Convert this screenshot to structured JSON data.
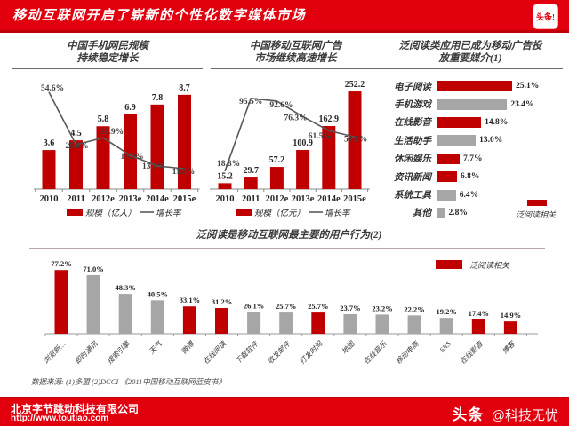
{
  "header": {
    "title": "移动互联网开启了崭新的个性化数字媒体市场",
    "logo": "头条!"
  },
  "colors": {
    "accent_red": "#e3000e",
    "bar_red": "#c00000",
    "bar_gray": "#a6a6a6",
    "line_gray": "#595959"
  },
  "chart_data": [
    {
      "id": "mobile-netizens",
      "type": "bar",
      "title_lines": [
        "中国手机网民规模",
        "持续稳定增长"
      ],
      "categories": [
        "2010",
        "2011",
        "2012e",
        "2013e",
        "2014e",
        "2015e"
      ],
      "series": [
        {
          "name": "规模（亿人）",
          "type": "bar",
          "values": [
            3.6,
            4.5,
            5.8,
            6.9,
            7.8,
            8.7
          ],
          "labels": [
            "3.6",
            "4.5",
            "5.8",
            "6.9",
            "7.8",
            "8.7"
          ]
        },
        {
          "name": "增长率",
          "type": "line",
          "values": [
            54.6,
            25.0,
            28.9,
            19.0,
            13.0,
            11.5
          ],
          "labels": [
            "54.6%",
            "25.0%",
            "28.9%",
            "19.0%",
            "13.0%",
            "11.5%"
          ]
        }
      ],
      "legend_position": "bottom"
    },
    {
      "id": "mobile-ad-market",
      "type": "bar",
      "title_lines": [
        "中国移动互联网广告",
        "市场继续高速增长"
      ],
      "categories": [
        "2010",
        "2011",
        "2012e",
        "2013e",
        "2014e",
        "2015e"
      ],
      "series": [
        {
          "name": "规模（亿元）",
          "type": "bar",
          "values": [
            15.2,
            29.7,
            57.2,
            100.9,
            162.9,
            252.2
          ],
          "labels": [
            "15.2",
            "29.7",
            "57.2",
            "100.9",
            "162.9",
            "252.2"
          ]
        },
        {
          "name": "增长率",
          "type": "line",
          "values": [
            18.8,
            95.5,
            92.6,
            76.3,
            61.5,
            54.8
          ],
          "labels": [
            "18.8%",
            "95.5%",
            "92.6%",
            "76.3%",
            "61.5%",
            "54.8%"
          ]
        }
      ],
      "legend_position": "bottom"
    },
    {
      "id": "ad-media",
      "type": "hbar",
      "title_lines": [
        "泛阅读类应用已成为移动广告投",
        "放重要媒介(1)"
      ],
      "rows": [
        {
          "label": "电子阅读",
          "value": 25.1,
          "text": "25.1%",
          "highlight": true
        },
        {
          "label": "手机游戏",
          "value": 23.4,
          "text": "23.4%",
          "highlight": false
        },
        {
          "label": "在线影音",
          "value": 14.8,
          "text": "14.8%",
          "highlight": true
        },
        {
          "label": "生活助手",
          "value": 13.0,
          "text": "13.0%",
          "highlight": false
        },
        {
          "label": "休闲娱乐",
          "value": 7.7,
          "text": "7.7%",
          "highlight": true
        },
        {
          "label": "资讯新闻",
          "value": 6.8,
          "text": "6.8%",
          "highlight": true
        },
        {
          "label": "系统工具",
          "value": 6.4,
          "text": "6.4%",
          "highlight": false
        },
        {
          "label": "其他",
          "value": 2.8,
          "text": "2.8%",
          "highlight": false
        }
      ],
      "legend": "泛阅读相关",
      "legend_position": "bottom-right"
    },
    {
      "id": "user-behavior",
      "type": "bar",
      "title": "泛阅读是移动互联网最主要的用户行为(2)",
      "legend": "泛阅读相关",
      "legend_position": "top-right",
      "categories": [
        "浏览新…",
        "即时通讯",
        "搜索引擎",
        "天气",
        "微博",
        "在线阅读",
        "下载软件",
        "收发邮件",
        "打发时间",
        "地图",
        "在线音乐",
        "移动电商",
        "SNS",
        "在线影音",
        "博客"
      ],
      "values": [
        77.2,
        71.0,
        48.3,
        40.5,
        33.1,
        31.2,
        26.1,
        25.7,
        25.7,
        23.7,
        23.2,
        22.2,
        19.2,
        17.4,
        14.9
      ],
      "value_labels": [
        "77.2%",
        "71.0%",
        "48.3%",
        "40.5%",
        "33.1%",
        "31.2%",
        "26.1%",
        "25.7%",
        "25.7%",
        "23.7%",
        "23.2%",
        "22.2%",
        "19.2%",
        "17.4%",
        "14.9%"
      ],
      "highlights": [
        true,
        false,
        false,
        false,
        true,
        true,
        false,
        false,
        true,
        false,
        false,
        false,
        false,
        true,
        true
      ]
    }
  ],
  "source_note": "数据来源: (1)多盟 (2)DCCI 《2011中国移动互联网蓝皮书》",
  "footer": {
    "company": "北京字节跳动科技有限公司",
    "url": "http://www.toutiao.com",
    "brand": "头条",
    "handle": "@科技无忧"
  }
}
